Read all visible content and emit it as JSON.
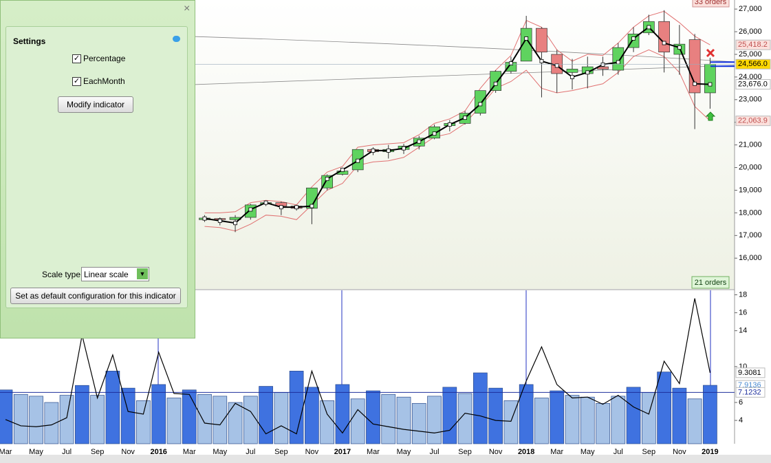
{
  "settings_panel": {
    "title": "Settings",
    "checkboxes": [
      {
        "label": "Percentage",
        "checked": true
      },
      {
        "label": "EachMonth",
        "checked": true
      }
    ],
    "modify_button": "Modify indicator",
    "scale_type_label": "Scale type",
    "scale_type_value": "Linear scale",
    "default_button": "Set as default configuration for this indicator"
  },
  "chart_data": [
    {
      "type": "candlestick",
      "open": [
        17700,
        17750,
        17700,
        17800,
        18400,
        18450,
        18300,
        18200,
        19100,
        19700,
        19900,
        20800,
        20700,
        20800,
        20950,
        21300,
        21850,
        21950,
        22400,
        23400,
        24250,
        24700,
        26150,
        25000,
        24200,
        24150,
        24450,
        24300,
        25300,
        25950,
        26450,
        25000,
        25650,
        23300
      ],
      "high": [
        17900,
        17800,
        17900,
        18400,
        18550,
        18500,
        18350,
        19100,
        19700,
        20000,
        20800,
        20900,
        21000,
        21050,
        21400,
        21900,
        22100,
        22500,
        23400,
        24300,
        24900,
        26700,
        26200,
        25200,
        24800,
        24900,
        24900,
        25500,
        26200,
        26750,
        26950,
        26300,
        25900,
        24850
      ],
      "low": [
        17600,
        17450,
        17150,
        17700,
        18300,
        17900,
        18100,
        17500,
        19000,
        19650,
        19800,
        20550,
        20400,
        20600,
        20800,
        21250,
        21600,
        21900,
        22300,
        23300,
        24150,
        24700,
        23100,
        23300,
        23450,
        23500,
        24050,
        24100,
        25100,
        25850,
        24200,
        24100,
        21700,
        22600
      ],
      "close": [
        17770,
        17700,
        17800,
        18350,
        18450,
        18300,
        18200,
        19100,
        19650,
        19850,
        20800,
        20700,
        20800,
        20950,
        21300,
        21800,
        21950,
        22400,
        23400,
        24250,
        24650,
        26150,
        25100,
        24150,
        24350,
        24450,
        24350,
        25300,
        25900,
        26450,
        25100,
        25450,
        23300,
        24566
      ],
      "up_color": "#5fd35f",
      "down_color": "#e88080",
      "average_line": {
        "color": "#000000",
        "values": [
          17750,
          17650,
          17550,
          18150,
          18450,
          18250,
          18250,
          18300,
          19500,
          19900,
          20300,
          20750,
          20750,
          20850,
          21150,
          21500,
          21900,
          22200,
          22800,
          23700,
          24600,
          25700,
          24700,
          24500,
          24000,
          24200,
          24550,
          24650,
          25700,
          26200,
          25500,
          25300,
          23700,
          23676
        ]
      },
      "bands": {
        "color": "#e07070",
        "upper": [
          18000,
          18000,
          18050,
          18450,
          18550,
          18500,
          18350,
          19150,
          19800,
          20050,
          20900,
          21000,
          21050,
          21100,
          21450,
          21950,
          22150,
          22500,
          23500,
          24300,
          24950,
          26500,
          26200,
          25200,
          24700,
          25000,
          24950,
          25500,
          26200,
          26700,
          26900,
          26400,
          25800,
          25418.2
        ],
        "lower": [
          17400,
          17350,
          17200,
          17500,
          17900,
          17850,
          17700,
          18350,
          19000,
          19300,
          20100,
          20250,
          20300,
          20450,
          20900,
          21350,
          21500,
          21950,
          22700,
          23500,
          23800,
          24300,
          23500,
          23300,
          23400,
          23550,
          23700,
          24200,
          24900,
          25200,
          24900,
          24200,
          22700,
          22063.9
        ]
      },
      "ylim": [
        14640,
        27400
      ],
      "yticks": [
        {
          "value": 16000,
          "label": "16,000"
        },
        {
          "value": 17000,
          "label": "17,000"
        },
        {
          "value": 18000,
          "label": "18,000"
        },
        {
          "value": 19000,
          "label": "19,000"
        },
        {
          "value": 20000,
          "label": "20,000"
        },
        {
          "value": 21000,
          "label": "21,000"
        },
        {
          "value": 22000,
          "label": "22,000"
        },
        {
          "value": 23000,
          "label": "23,000"
        },
        {
          "value": 24000,
          "label": "24,000"
        },
        {
          "value": 25000,
          "label": "25,000"
        },
        {
          "value": 26000,
          "label": "26,000"
        },
        {
          "value": 27000,
          "label": "27,000"
        }
      ],
      "price_labels": [
        {
          "value": 25418.2,
          "label": "25,418.2"
        },
        {
          "value": 24566.0,
          "label": "24,566.0"
        },
        {
          "value": 23676.0,
          "label": "23,676.0"
        },
        {
          "value": 22063.9,
          "label": "22,063.9"
        }
      ],
      "price_label_colors": [
        "#c05050",
        "#000000",
        "#000000",
        "#c05050"
      ],
      "price_label_fills": [
        "#fbe0dc",
        "#ffd800",
        "#ffffff",
        "#fbe0dc"
      ],
      "orders_top": "33 orders",
      "orders_bottom": "21 orders"
    },
    {
      "type": "bar",
      "categories": [
        "Mar",
        null,
        "May",
        null,
        "Jul",
        null,
        "Sep",
        null,
        "Nov",
        null,
        "2016",
        null,
        "Mar",
        null,
        "May",
        null,
        "Jul",
        null,
        "Sep",
        null,
        "Nov",
        null,
        "2017",
        null,
        "Mar",
        null,
        "May",
        null,
        "Jul",
        null,
        "Sep",
        null,
        "Nov",
        null,
        "2018",
        null,
        "Mar",
        null,
        "May",
        null,
        "Jul",
        null,
        "Sep",
        null,
        "Nov",
        null,
        "2019"
      ],
      "values": [
        7.4,
        6.9,
        6.7,
        6.0,
        6.8,
        7.9,
        6.8,
        9.5,
        7.6,
        6.2,
        8.0,
        6.5,
        7.4,
        6.9,
        6.7,
        6.0,
        6.7,
        7.8,
        7.1,
        9.5,
        7.7,
        6.2,
        8.0,
        6.4,
        7.3,
        6.9,
        6.6,
        5.9,
        6.7,
        7.7,
        7.0,
        9.3,
        7.6,
        6.2,
        8.0,
        6.5,
        7.3,
        6.8,
        6.6,
        5.9,
        6.7,
        7.7,
        7.1,
        9.4,
        7.6,
        6.4,
        7.9136
      ],
      "color_above": "#3f72e0",
      "color_below": "#a6c2e6",
      "line": {
        "color": "#000000",
        "values": [
          4.1,
          3.4,
          3.3,
          3.5,
          4.3,
          13.5,
          6.5,
          11.3,
          5.0,
          4.7,
          11.6,
          7.0,
          6.9,
          3.7,
          3.5,
          5.9,
          5.0,
          2.5,
          3.4,
          2.5,
          9.5,
          4.7,
          2.6,
          5.2,
          3.6,
          3.3,
          3.0,
          2.8,
          2.6,
          2.9,
          4.8,
          4.5,
          4.0,
          3.9,
          8.4,
          12.2,
          8.0,
          6.5,
          6.6,
          5.8,
          6.8,
          5.5,
          4.7,
          10.6,
          8.1,
          17.6,
          9.3081
        ]
      },
      "marker_labels": [
        9.3081,
        7.9136,
        7.1232
      ],
      "marker_colors": [
        "#000000",
        "#4a8ad0",
        "#1c2e9c"
      ],
      "average": 7.1232,
      "ylim": [
        1.4,
        18.5
      ],
      "yticks": [
        4,
        6,
        10,
        14,
        16,
        18
      ]
    }
  ]
}
